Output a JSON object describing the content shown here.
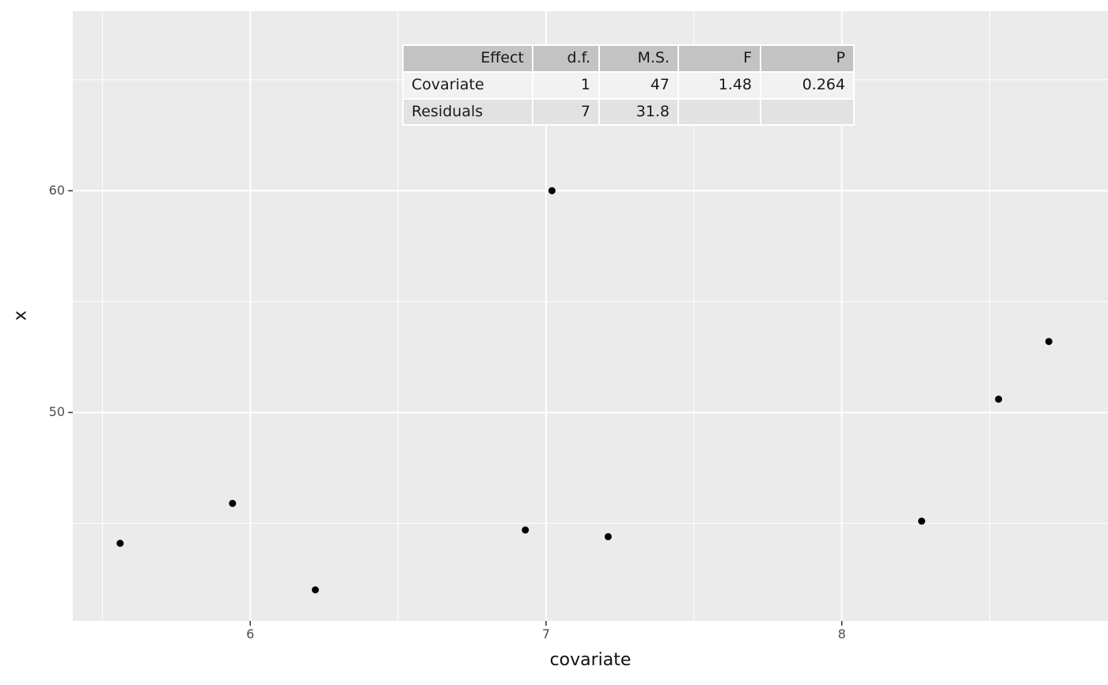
{
  "chart_data": {
    "type": "scatter",
    "title": "",
    "xlabel": "covariate",
    "ylabel": "x",
    "xlim": [
      5.4,
      8.9
    ],
    "ylim": [
      40.6,
      68.1
    ],
    "x_ticks": [
      6,
      7,
      8
    ],
    "x_minor_ticks": [
      5.5,
      6.5,
      7.5,
      8.5
    ],
    "y_ticks": [
      50,
      60
    ],
    "y_minor_ticks": [
      45,
      55,
      65
    ],
    "grid": true,
    "legend": null,
    "colors": {
      "panel_bg": "#EBEBEB",
      "grid": "#FFFFFF",
      "point": "#000000",
      "tick_text": "#4D4D4D",
      "axis_title_text": "#111111",
      "tick_mark": "#333333",
      "table_header_bg": "#C3C3C3",
      "table_row1_bg": "#F2F2F2",
      "table_row2_bg": "#E2E2E2"
    },
    "points": [
      {
        "x": 5.56,
        "y": 44.1
      },
      {
        "x": 5.94,
        "y": 45.9
      },
      {
        "x": 6.22,
        "y": 42.0
      },
      {
        "x": 6.93,
        "y": 44.7
      },
      {
        "x": 7.02,
        "y": 60.0
      },
      {
        "x": 7.21,
        "y": 44.4
      },
      {
        "x": 8.27,
        "y": 45.1
      },
      {
        "x": 8.53,
        "y": 50.6
      },
      {
        "x": 8.7,
        "y": 53.2
      }
    ],
    "annotation_table": {
      "headers": [
        "Effect",
        "d.f.",
        "M.S.",
        "F",
        "P"
      ],
      "rows": [
        [
          "Covariate",
          "1",
          "47",
          "1.48",
          "0.264"
        ],
        [
          "Residuals",
          "7",
          "31.8",
          "",
          ""
        ]
      ]
    }
  }
}
